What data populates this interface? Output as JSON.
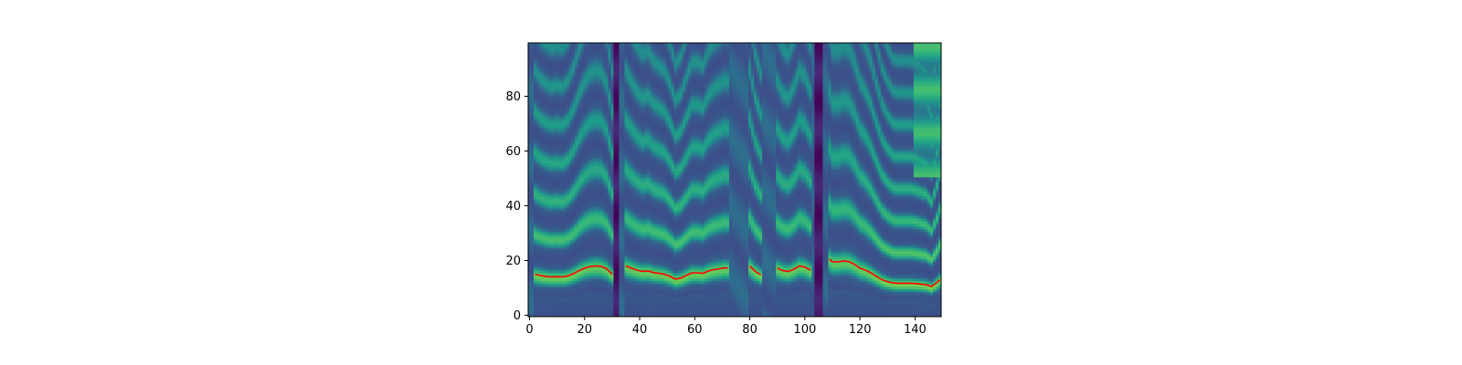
{
  "chart_data": {
    "type": "heatmap",
    "title": "",
    "xlabel": "",
    "ylabel": "",
    "colormap": "viridis",
    "xlim": [
      0,
      149
    ],
    "ylim": [
      0,
      99
    ],
    "x_ticks": [
      0,
      20,
      40,
      60,
      80,
      100,
      120,
      140
    ],
    "y_ticks": [
      0,
      20,
      40,
      60,
      80
    ],
    "x_tick_labels": [
      "0",
      "20",
      "40",
      "60",
      "80",
      "100",
      "120",
      "140"
    ],
    "y_tick_labels": [
      "0",
      "20",
      "40",
      "60",
      "80"
    ],
    "grid": false,
    "voiced_segments": [
      {
        "start": 2,
        "end": 30
      },
      {
        "start": 35,
        "end": 72
      },
      {
        "start": 80,
        "end": 84
      },
      {
        "start": 90,
        "end": 102
      },
      {
        "start": 109,
        "end": 149
      }
    ],
    "silent_frames": [
      31,
      32,
      104,
      105,
      106
    ],
    "overlay_series": [
      {
        "color": "#ff0000",
        "points": [
          [
            2,
            15.0
          ],
          [
            4,
            14.5
          ],
          [
            6,
            14.2
          ],
          [
            8,
            14.0
          ],
          [
            10,
            14.1
          ],
          [
            12,
            14.0
          ],
          [
            14,
            14.4
          ],
          [
            16,
            15.2
          ],
          [
            18,
            16.3
          ],
          [
            20,
            17.2
          ],
          [
            22,
            17.8
          ],
          [
            24,
            18.0
          ],
          [
            26,
            17.9
          ],
          [
            28,
            17.0
          ],
          [
            30,
            15.0
          ],
          [
            35,
            18.0
          ],
          [
            37,
            17.2
          ],
          [
            39,
            16.5
          ],
          [
            41,
            16.0
          ],
          [
            43,
            16.2
          ],
          [
            45,
            15.6
          ],
          [
            47,
            15.3
          ],
          [
            49,
            15.0
          ],
          [
            51,
            14.2
          ],
          [
            53,
            13.2
          ],
          [
            55,
            13.6
          ],
          [
            57,
            14.6
          ],
          [
            59,
            15.5
          ],
          [
            61,
            15.5
          ],
          [
            63,
            15.3
          ],
          [
            65,
            16.2
          ],
          [
            67,
            16.7
          ],
          [
            69,
            17.0
          ],
          [
            71,
            17.3
          ],
          [
            72,
            17.2
          ],
          [
            80,
            18.0
          ],
          [
            82,
            16.0
          ],
          [
            84,
            14.8
          ],
          [
            90,
            17.2
          ],
          [
            92,
            16.3
          ],
          [
            94,
            16.0
          ],
          [
            96,
            16.8
          ],
          [
            98,
            18.0
          ],
          [
            100,
            17.6
          ],
          [
            102,
            16.5
          ],
          [
            109,
            20.5
          ],
          [
            110,
            19.5
          ],
          [
            112,
            19.5
          ],
          [
            114,
            19.8
          ],
          [
            116,
            19.6
          ],
          [
            118,
            18.6
          ],
          [
            120,
            17.2
          ],
          [
            122,
            16.5
          ],
          [
            124,
            15.5
          ],
          [
            126,
            14.2
          ],
          [
            128,
            13.0
          ],
          [
            130,
            12.3
          ],
          [
            132,
            11.8
          ],
          [
            134,
            11.7
          ],
          [
            136,
            11.7
          ],
          [
            138,
            11.7
          ],
          [
            140,
            11.6
          ],
          [
            142,
            11.4
          ],
          [
            144,
            11.2
          ],
          [
            146,
            10.5
          ],
          [
            148,
            12.0
          ],
          [
            149,
            13.0
          ]
        ]
      }
    ]
  }
}
